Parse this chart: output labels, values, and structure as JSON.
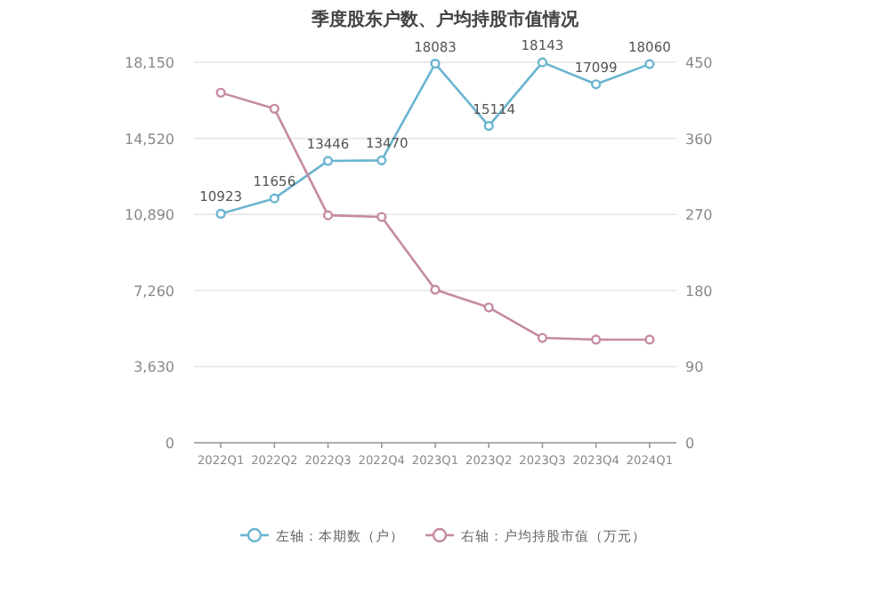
{
  "chart_data": {
    "type": "line",
    "title": "季度股东户数、户均持股市值情况",
    "categories": [
      "2022Q1",
      "2022Q2",
      "2022Q3",
      "2022Q4",
      "2023Q1",
      "2023Q2",
      "2023Q3",
      "2023Q4",
      "2024Q1"
    ],
    "series": [
      {
        "name": "左轴：本期数（户）",
        "color": "#6ab4d0",
        "values": [
          10923,
          11656,
          13446,
          13470,
          18083,
          15114,
          18143,
          17099,
          18060
        ],
        "value_labels": [
          "10923",
          "11656",
          "13446",
          "13470",
          "18083",
          "15114",
          "18143",
          "17099",
          "18060"
        ]
      },
      {
        "name": "右轴：户均持股市值（万元）",
        "color": "#c58aa3",
        "axis": "y2",
        "values": [
          414,
          395,
          269,
          267,
          181,
          160,
          124,
          122,
          122
        ]
      }
    ],
    "ylim": [
      0,
      18150
    ],
    "yticks": [
      0,
      {
        "value": 3630,
        "label": "3,630"
      },
      {
        "value": 7260,
        "label": "7,260"
      },
      {
        "value": 10890,
        "label": "10,890"
      },
      {
        "value": 14520,
        "label": "14,520"
      },
      {
        "value": 18150,
        "label": "18,150"
      }
    ],
    "y2lim": [
      0,
      450
    ],
    "y2ticks": [
      0,
      90,
      180,
      270,
      360,
      450
    ],
    "grid": "y",
    "legend": "bottom",
    "marker": "circle",
    "line_style": "solid"
  }
}
